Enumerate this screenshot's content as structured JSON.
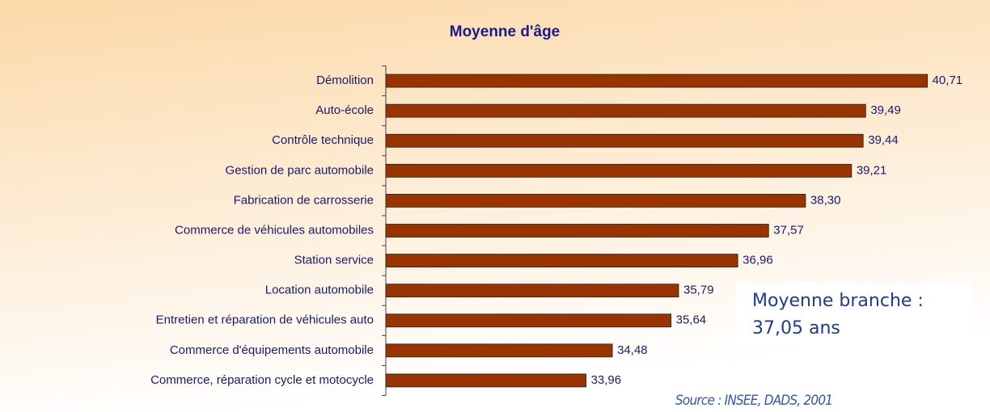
{
  "chart_data": {
    "type": "bar",
    "orientation": "horizontal",
    "title": "Moyenne d'âge",
    "categories": [
      "Démolition",
      "Auto-école",
      "Contrôle technique",
      "Gestion de parc automobile",
      "Fabrication de carrosserie",
      "Commerce de véhicules automobiles",
      "Station service",
      "Location automobile",
      "Entretien et réparation de véhicules auto",
      "Commerce d'équipements automobile",
      "Commerce, réparation cycle et motocycle"
    ],
    "values": [
      40.71,
      39.49,
      39.44,
      39.21,
      38.3,
      37.57,
      36.96,
      35.79,
      35.64,
      34.48,
      33.96
    ],
    "value_labels": [
      "40,71",
      "39,49",
      "39,44",
      "39,21",
      "38,30",
      "37,57",
      "36,96",
      "35,79",
      "35,64",
      "34,48",
      "33,96"
    ],
    "color": "#993300",
    "xlim": [
      30,
      41.5
    ],
    "annotation": [
      "Moyenne branche :",
      "37,05 ans"
    ],
    "source": "Source : INSEE, DADS, 2001"
  }
}
